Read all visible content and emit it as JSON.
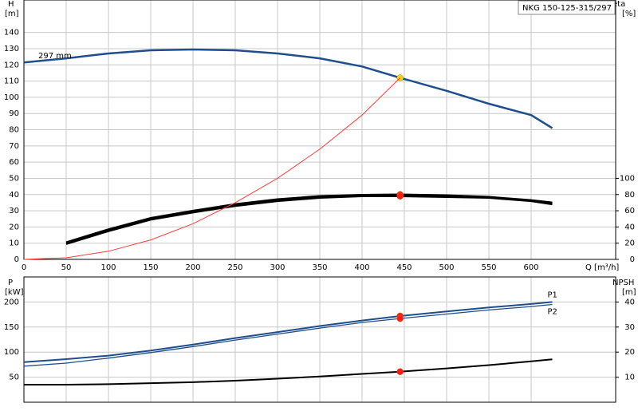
{
  "chart_data": [
    {
      "type": "line",
      "title": "NKG 150-125-315/297",
      "ylabel": "H",
      "yunit": "[m]",
      "y2label": "eta",
      "y2unit": "[%]",
      "xlabel": "Q [m³/h]",
      "x": [
        0,
        50,
        100,
        150,
        200,
        250,
        300,
        350,
        400,
        445,
        500,
        550,
        600,
        625
      ],
      "xlim": [
        0,
        700
      ],
      "xticks": [
        0,
        50,
        100,
        150,
        200,
        250,
        300,
        350,
        400,
        450,
        500,
        550,
        600
      ],
      "ylim": [
        0,
        160
      ],
      "yticks": [
        0,
        10,
        20,
        30,
        40,
        50,
        60,
        70,
        80,
        90,
        100,
        110,
        120,
        130,
        140
      ],
      "y2lim": [
        0,
        320
      ],
      "y2ticks": [
        0,
        20,
        40,
        60,
        80,
        100
      ],
      "grid": true,
      "duty_point_x": 445,
      "series": [
        {
          "name": "297 mm",
          "color": "#1f4e8c",
          "width": 2.5,
          "point_color": "#ffd21f",
          "values": [
            121.5,
            124,
            127,
            129,
            129.5,
            129,
            127,
            124,
            119,
            112,
            104,
            96,
            89,
            81
          ]
        },
        {
          "color": "#000000",
          "width": 2.5,
          "axis": "y2",
          "point_color": "#ff1a1a",
          "values": [
            null,
            21,
            37,
            51,
            60,
            68,
            74,
            78,
            79.5,
            80,
            79,
            77,
            73,
            70
          ]
        },
        {
          "color": "#000000",
          "width": 2.5,
          "axis": "y2",
          "point_color": "#ff1a1a",
          "values": [
            null,
            19,
            35,
            49,
            58,
            66,
            72,
            76,
            78,
            78,
            77,
            76,
            72,
            68
          ]
        },
        {
          "color": "#ff3b3b",
          "width": 1,
          "values": [
            0,
            1,
            5,
            12,
            22,
            35,
            50,
            68,
            89,
            112,
            null,
            null,
            null,
            null
          ]
        }
      ]
    },
    {
      "type": "line",
      "ylabel": "P",
      "yunit": "[kW]",
      "y2label": "NPSH",
      "y2unit": "[m]",
      "x": [
        0,
        50,
        100,
        150,
        200,
        250,
        300,
        350,
        400,
        445,
        500,
        550,
        600,
        625
      ],
      "xlim": [
        0,
        700
      ],
      "xticks": [
        0,
        50,
        100,
        150,
        200,
        250,
        300,
        350,
        400,
        450,
        500,
        550,
        600
      ],
      "ylim": [
        0,
        250
      ],
      "yticks": [
        50,
        100,
        150,
        200
      ],
      "y2lim": [
        0,
        50
      ],
      "y2ticks": [
        10,
        20,
        30,
        40
      ],
      "grid": true,
      "duty_point_x": 445,
      "series": [
        {
          "name": "P1",
          "color": "#1f4e8c",
          "width": 2,
          "point_color": "#ff1a1a",
          "values": [
            80,
            86,
            93,
            103,
            115,
            128,
            140,
            152,
            163,
            172,
            181,
            189,
            196,
            200
          ]
        },
        {
          "name": "P2",
          "color": "#1f4e8c",
          "width": 1.3,
          "point_color": "#ff1a1a",
          "values": [
            72,
            78,
            88,
            99,
            111,
            124,
            136,
            148,
            159,
            167,
            176,
            184,
            191,
            195
          ]
        },
        {
          "color": "#000000",
          "width": 2,
          "axis": "y2",
          "point_color": "#ff1a1a",
          "values": [
            7,
            7,
            7.2,
            7.6,
            8,
            8.6,
            9.4,
            10.3,
            11.3,
            12.2,
            13.5,
            14.8,
            16.3,
            17.1
          ]
        }
      ]
    }
  ]
}
